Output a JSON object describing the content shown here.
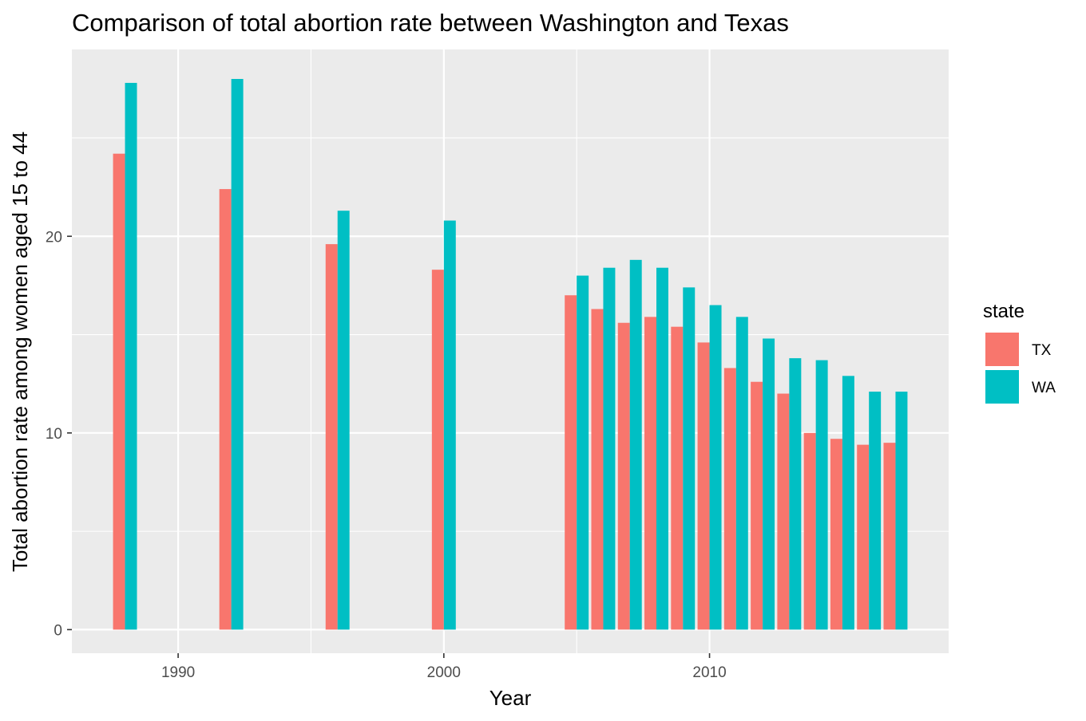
{
  "chart_data": {
    "type": "bar",
    "title": "Comparison of total abortion rate between Washington and Texas",
    "xlabel": "Year",
    "ylabel": "Total abortion rate among women aged 15 to 44",
    "x_ticks": [
      "1990",
      "2000",
      "2010"
    ],
    "y_ticks": [
      "0",
      "10",
      "20"
    ],
    "xlim": [
      1986,
      2019
    ],
    "ylim": [
      -1.2,
      29.5
    ],
    "grid": true,
    "legend": {
      "title": "state",
      "placement": "right"
    },
    "series": [
      {
        "name": "TX",
        "color": "#F8766D",
        "x": [
          1988,
          1992,
          1996,
          2000,
          2005,
          2006,
          2007,
          2008,
          2009,
          2010,
          2011,
          2012,
          2013,
          2014,
          2015,
          2016,
          2017
        ],
        "values": [
          24.2,
          22.4,
          19.6,
          18.3,
          17.0,
          16.3,
          15.6,
          15.9,
          15.4,
          14.6,
          13.3,
          12.6,
          12.0,
          10.0,
          9.7,
          9.4,
          9.5
        ]
      },
      {
        "name": "WA",
        "color": "#00BFC4",
        "x": [
          1988,
          1992,
          1996,
          2000,
          2005,
          2006,
          2007,
          2008,
          2009,
          2010,
          2011,
          2012,
          2013,
          2014,
          2015,
          2016,
          2017
        ],
        "values": [
          27.8,
          28.0,
          21.3,
          20.8,
          18.0,
          18.4,
          18.8,
          18.4,
          17.4,
          16.5,
          15.9,
          14.8,
          13.8,
          13.7,
          12.9,
          12.1,
          12.1
        ]
      }
    ]
  }
}
